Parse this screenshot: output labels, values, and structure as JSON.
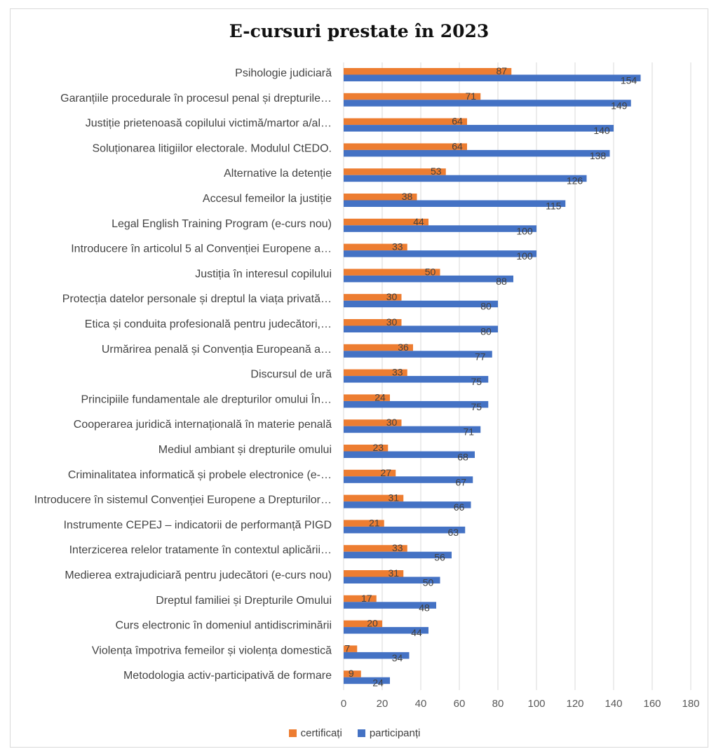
{
  "chart_data": {
    "type": "bar",
    "orientation": "horizontal",
    "title": "E-cursuri prestate în 2023",
    "categories": [
      "Psihologie judiciară",
      "Garanțiile procedurale în procesul penal și drepturile…",
      "Justiție prietenoasă copilului victimă/martor a/al…",
      "Soluționarea litigiilor electorale. Modulul CtEDO.",
      "Alternative la detenție",
      "Accesul femeilor la justiție",
      "Legal English Training Program (e-curs nou)",
      "Introducere în articolul 5 al Convenției Europene a…",
      "Justiția în interesul copilului",
      "Protecția datelor personale și dreptul la viața privată…",
      "Etica și conduita profesională pentru judecători,…",
      "Urmărirea penală și Convenția Europeană a…",
      "Discursul de ură",
      "Principiile fundamentale ale drepturilor omului În…",
      "Cooperarea juridică internațională în materie penală",
      "Mediul ambiant și drepturile omului",
      "Criminalitatea informatică și probele electronice (e-…",
      "Introducere în sistemul Convenției Europene a Drepturilor…",
      "Instrumente CEPEJ – indicatorii de performanță PIGD",
      "Interzicerea relelor tratamente în contextul aplicării…",
      "Medierea extrajudiciară pentru judecători (e-curs nou)",
      "Dreptul familiei și Drepturile Omului",
      "Curs electronic în domeniul antidiscriminării",
      "Violența împotriva femeilor și violența domestică",
      "Metodologia activ-participativă de formare"
    ],
    "series": [
      {
        "name": "certificați",
        "color": "#ed7d31",
        "values": [
          87,
          71,
          64,
          64,
          53,
          38,
          44,
          33,
          50,
          30,
          30,
          36,
          33,
          24,
          30,
          23,
          27,
          31,
          21,
          33,
          31,
          17,
          20,
          7,
          9
        ]
      },
      {
        "name": "participanți",
        "color": "#4472c4",
        "values": [
          154,
          149,
          140,
          138,
          126,
          115,
          100,
          100,
          88,
          80,
          80,
          77,
          75,
          75,
          71,
          68,
          67,
          66,
          63,
          56,
          50,
          48,
          44,
          34,
          24
        ]
      }
    ],
    "xlim": [
      0,
      180
    ],
    "xticks": [
      0,
      20,
      40,
      60,
      80,
      100,
      120,
      140,
      160,
      180
    ],
    "grid": true,
    "legend_position": "bottom"
  }
}
